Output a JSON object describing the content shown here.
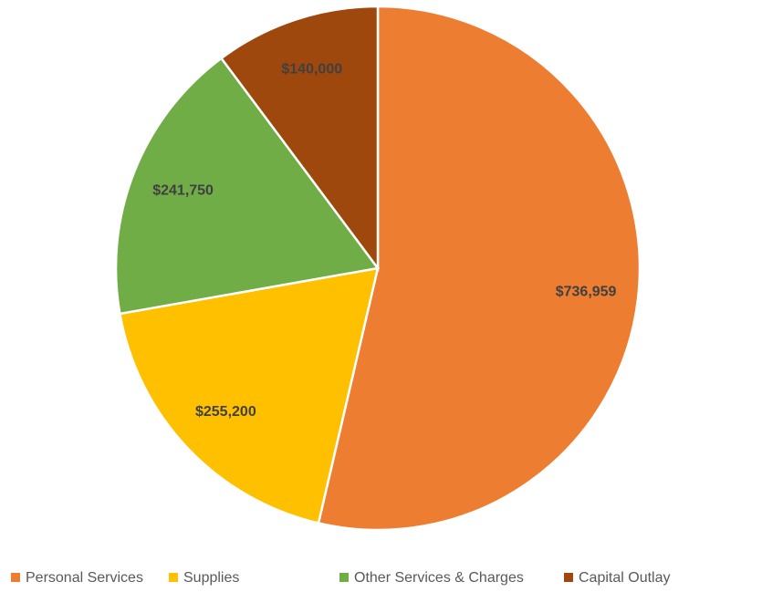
{
  "chart_data": {
    "type": "pie",
    "categories": [
      "Personal Services",
      "Supplies",
      "Other Services & Charges",
      "Capital Outlay"
    ],
    "values": [
      736959,
      255200,
      241750,
      140000
    ],
    "value_labels": [
      "$736,959",
      "$255,200",
      "$241,750",
      "$140,000"
    ],
    "colors": [
      "#ed7d31",
      "#ffc000",
      "#70ad47",
      "#9e480e"
    ],
    "legend": "bottom"
  }
}
